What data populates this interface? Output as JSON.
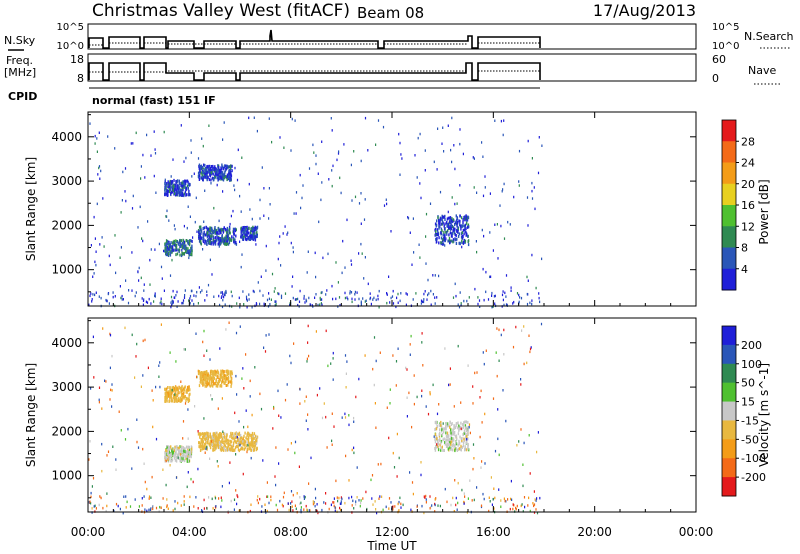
{
  "header": {
    "title": "Christmas Valley West (fitACF)",
    "beam": "Beam 08",
    "date": "17/Aug/2013"
  },
  "top_panels": {
    "nsky_label": "N.Sky",
    "nsearch_label": "N.Search",
    "noise_tick_high": "10^5",
    "noise_tick_low": "10^0",
    "freq_label_1": "Freq.",
    "freq_label_2": "[MHz]",
    "freq_tick_high": "18",
    "freq_tick_low": "8",
    "nave_label": "Nave",
    "nave_tick_high": "60",
    "nave_tick_low": "0",
    "cpid_label": "CPID",
    "cpid_value": "normal (fast) 151 IF"
  },
  "colors": {
    "power": [
      "#1f1fd8",
      "#2a56b8",
      "#2f8a52",
      "#4fc030",
      "#e8d020",
      "#f39c18",
      "#f36a18",
      "#e41a1c"
    ],
    "velocity": [
      "#1f1fd8",
      "#2a56b8",
      "#2f8a52",
      "#4fc030",
      "#c8c8c8",
      "#e8b840",
      "#f39c18",
      "#f36a18",
      "#e41a1c"
    ]
  },
  "chart_data": [
    {
      "type": "heatmap",
      "panel": "power",
      "ylabel": "Slant Range [km]",
      "yticks": [
        "1000",
        "2000",
        "3000",
        "4000"
      ],
      "ylim": [
        180,
        4560
      ],
      "xlim_hours": [
        0,
        24
      ],
      "colorbar": {
        "label": "Power [dB]",
        "ticks": [
          "4",
          "8",
          "12",
          "16",
          "20",
          "24",
          "28"
        ],
        "range": [
          0,
          32
        ]
      },
      "echo_regions": [
        {
          "start": "03:00",
          "end": "04:05",
          "range_km": [
            1350,
            1700
          ],
          "value_db": 8
        },
        {
          "start": "04:20",
          "end": "05:50",
          "range_km": [
            1600,
            2000
          ],
          "value_db": 6
        },
        {
          "start": "06:00",
          "end": "06:40",
          "range_km": [
            1700,
            2000
          ],
          "value_db": 4
        },
        {
          "start": "03:00",
          "end": "04:00",
          "range_km": [
            2700,
            3050
          ],
          "value_db": 4
        },
        {
          "start": "04:20",
          "end": "05:40",
          "range_km": [
            3050,
            3400
          ],
          "value_db": 4
        },
        {
          "start": "13:40",
          "end": "15:00",
          "range_km": [
            1600,
            2250
          ],
          "value_db": 4
        }
      ]
    },
    {
      "type": "heatmap",
      "panel": "velocity",
      "ylabel": "Slant Range [km]",
      "yticks": [
        "1000",
        "2000",
        "3000",
        "4000"
      ],
      "ylim": [
        180,
        4560
      ],
      "xlim_hours": [
        0,
        24
      ],
      "colorbar": {
        "label": "Velocity [m s^-1]",
        "ticks": [
          "200",
          "100",
          "50",
          "15",
          "-15",
          "-50",
          "-100",
          "-200"
        ]
      },
      "echo_regions": [
        {
          "start": "03:00",
          "end": "04:05",
          "range_km": [
            1350,
            1700
          ],
          "value_ms": 0
        },
        {
          "start": "04:20",
          "end": "06:40",
          "range_km": [
            1600,
            2000
          ],
          "value_ms": -30
        },
        {
          "start": "03:00",
          "end": "04:00",
          "range_km": [
            2700,
            3050
          ],
          "value_ms": -40
        },
        {
          "start": "04:20",
          "end": "05:40",
          "range_km": [
            3050,
            3400
          ],
          "value_ms": -40
        },
        {
          "start": "13:40",
          "end": "15:00",
          "range_km": [
            1600,
            2250
          ],
          "value_ms": 0
        }
      ]
    }
  ],
  "xaxis": {
    "label": "Time UT",
    "ticks": [
      "00:00",
      "04:00",
      "08:00",
      "12:00",
      "16:00",
      "20:00",
      "00:00"
    ]
  }
}
